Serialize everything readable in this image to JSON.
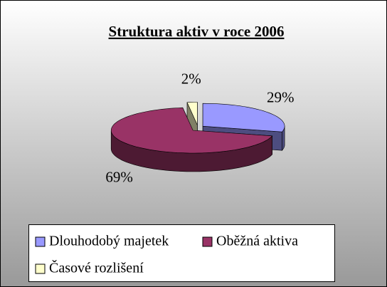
{
  "chart_data": {
    "type": "pie3d",
    "title": "Struktura aktiv v roce 2006",
    "categories": [
      "Dlouhodobý majetek",
      "Oběžná aktiva",
      "Časové rozlišení"
    ],
    "values": [
      29,
      69,
      2
    ],
    "value_labels": [
      "29%",
      "69%",
      "2%"
    ],
    "colors": [
      "#9999ff",
      "#993366",
      "#ffffcc"
    ],
    "legend": "bottom"
  }
}
